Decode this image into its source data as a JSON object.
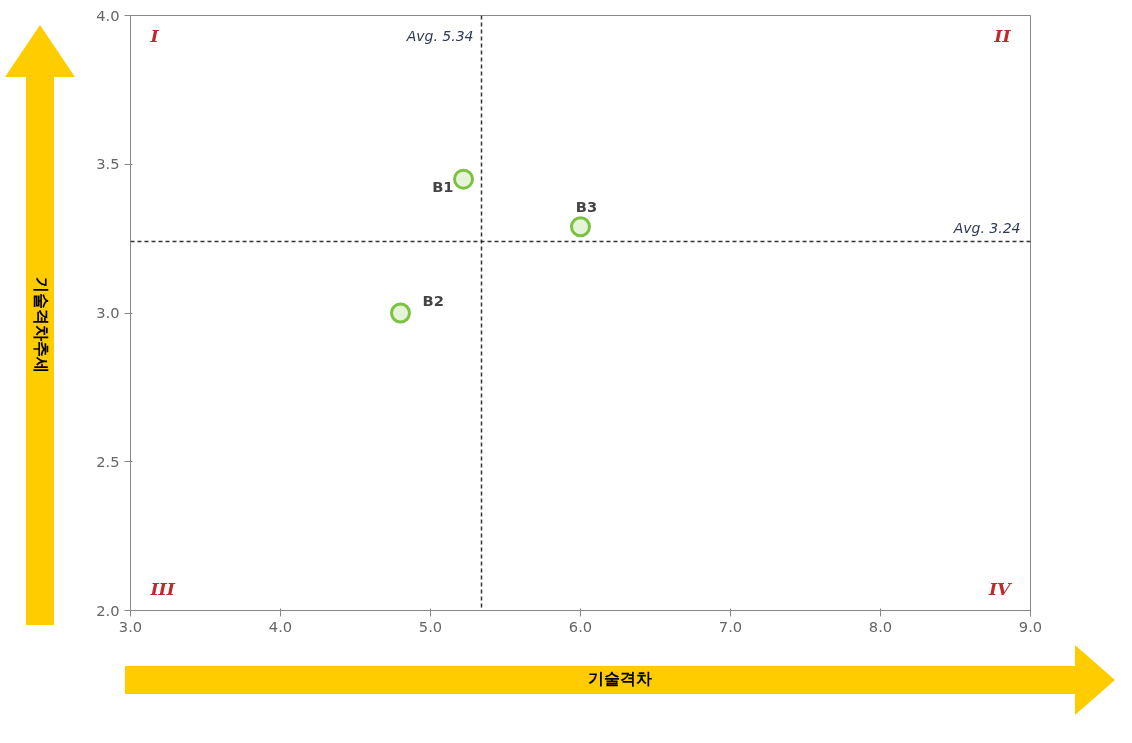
{
  "chart_data": {
    "type": "scatter",
    "xlabel": "기술격차",
    "ylabel": "기술격차추세",
    "xlim": [
      3,
      9
    ],
    "ylim": [
      2,
      4
    ],
    "xticks": [
      {
        "value": 3,
        "label": "3.0"
      },
      {
        "value": 4,
        "label": "4.0"
      },
      {
        "value": 5,
        "label": "5.0"
      },
      {
        "value": 6,
        "label": "6.0"
      },
      {
        "value": 7,
        "label": "7.0"
      },
      {
        "value": 8,
        "label": "8.0"
      },
      {
        "value": 9,
        "label": "9.0"
      }
    ],
    "yticks": [
      {
        "value": 2,
        "label": "2.0"
      },
      {
        "value": 2.5,
        "label": "2.5"
      },
      {
        "value": 3,
        "label": "3.0"
      },
      {
        "value": 3.5,
        "label": "3.5"
      },
      {
        "value": 4,
        "label": "4.0"
      }
    ],
    "series": [
      {
        "name": "B1",
        "color": "#7cc242",
        "x": [
          5.22
        ],
        "values": [
          3.45
        ]
      },
      {
        "name": "B2",
        "color": "#7cc242",
        "x": [
          4.8
        ],
        "values": [
          3.0
        ]
      },
      {
        "name": "B3",
        "color": "#7cc242",
        "x": [
          6.0
        ],
        "values": [
          3.29
        ]
      }
    ],
    "marker": "circle",
    "grid": false,
    "legend": false,
    "ref_lines": [
      {
        "axis": "x",
        "value": 5.34,
        "label": "Avg. 5.34",
        "color": "#333333",
        "line_style": "dashed"
      },
      {
        "axis": "y",
        "value": 3.24,
        "label": "Avg. 3.24",
        "color": "#333333",
        "line_style": "dashed"
      }
    ],
    "annotations": [
      "I",
      "II",
      "III",
      "IV"
    ]
  }
}
